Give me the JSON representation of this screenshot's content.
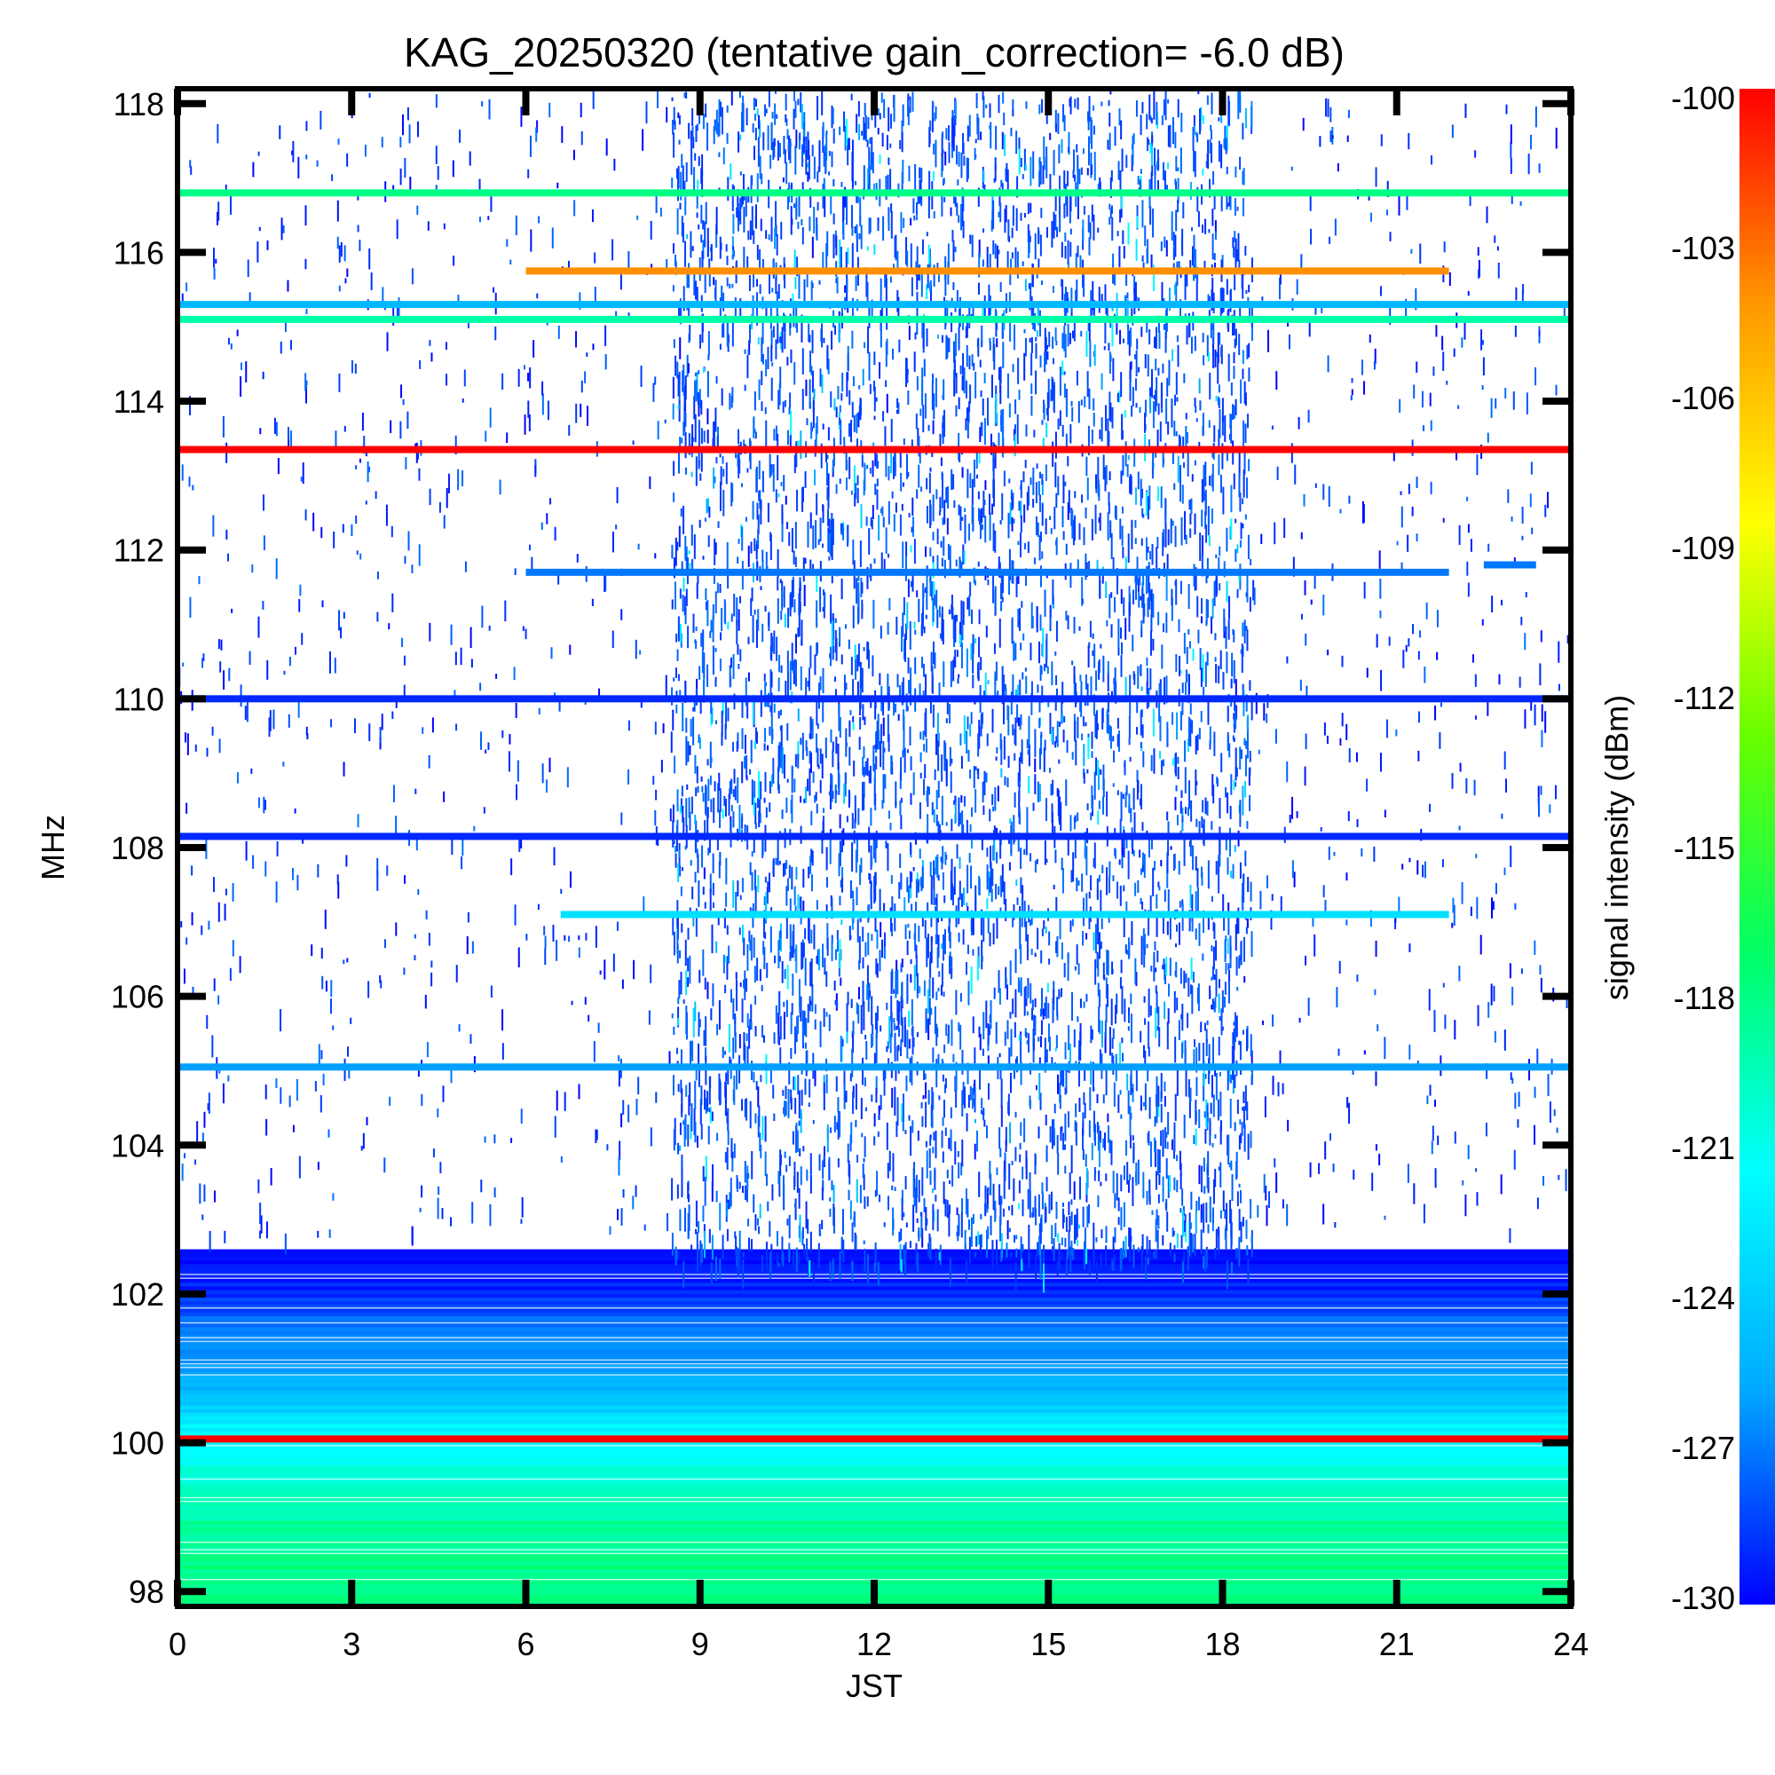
{
  "chart_data": {
    "type": "heatmap",
    "title": "KAG_20250320 (tentative gain_correction= -6.0 dB)",
    "xlabel": "JST",
    "ylabel": "MHz",
    "xlim": [
      0,
      24
    ],
    "ylim": [
      97.8,
      118.2
    ],
    "x_ticks": [
      "0",
      "3",
      "6",
      "9",
      "12",
      "15",
      "18",
      "21",
      "24"
    ],
    "y_ticks": [
      "98",
      "100",
      "102",
      "104",
      "106",
      "108",
      "110",
      "112",
      "114",
      "116",
      "118"
    ],
    "colorbar": {
      "label": "signal intensity (dBm)",
      "range": [
        -130,
        -100
      ],
      "ticks": [
        "-100",
        "-103",
        "-106",
        "-109",
        "-112",
        "-115",
        "-118",
        "-121",
        "-124",
        "-127",
        "-130"
      ],
      "colormap": [
        "#0000ff",
        "#00aaff",
        "#00ffff",
        "#00ff66",
        "#66ff00",
        "#ffff00",
        "#ff9900",
        "#ff0000"
      ]
    },
    "continuous_bands": [
      {
        "freq_mhz": 116.8,
        "start": 0,
        "end": 24,
        "dbm": -118
      },
      {
        "freq_mhz": 115.75,
        "start": 6,
        "end": 21.9,
        "dbm": -104
      },
      {
        "freq_mhz": 115.3,
        "start": 0,
        "end": 24,
        "dbm": -125
      },
      {
        "freq_mhz": 115.1,
        "start": 0,
        "end": 24,
        "dbm": -119
      },
      {
        "freq_mhz": 113.35,
        "start": 0,
        "end": 24,
        "dbm": -100
      },
      {
        "freq_mhz": 111.7,
        "start": 6,
        "end": 21.9,
        "dbm": -127
      },
      {
        "freq_mhz": 111.8,
        "start": 22.5,
        "end": 23.4,
        "dbm": -127
      },
      {
        "freq_mhz": 110.0,
        "start": 0,
        "end": 24,
        "dbm": -129
      },
      {
        "freq_mhz": 108.15,
        "start": 0,
        "end": 24,
        "dbm": -129
      },
      {
        "freq_mhz": 107.1,
        "start": 6.6,
        "end": 21.9,
        "dbm": -123
      },
      {
        "freq_mhz": 105.05,
        "start": 0,
        "end": 24,
        "dbm": -126
      },
      {
        "freq_mhz": 100.05,
        "start": 0,
        "end": 24,
        "dbm": -100
      }
    ],
    "background_profile": [
      {
        "freq_mhz": 102.6,
        "dbm": -130
      },
      {
        "freq_mhz": 102.0,
        "dbm": -129
      },
      {
        "freq_mhz": 101.5,
        "dbm": -127
      },
      {
        "freq_mhz": 101.0,
        "dbm": -126
      },
      {
        "freq_mhz": 100.5,
        "dbm": -124
      },
      {
        "freq_mhz": 100.2,
        "dbm": -122
      },
      {
        "freq_mhz": 99.8,
        "dbm": -121
      },
      {
        "freq_mhz": 99.0,
        "dbm": -119
      },
      {
        "freq_mhz": 98.3,
        "dbm": -118
      },
      {
        "freq_mhz": 97.8,
        "dbm": -118
      }
    ],
    "activity_region": {
      "start": 8.5,
      "end": 18.5,
      "freq_range": [
        102.4,
        118.2
      ],
      "dbm": -129
    },
    "grid": false
  }
}
